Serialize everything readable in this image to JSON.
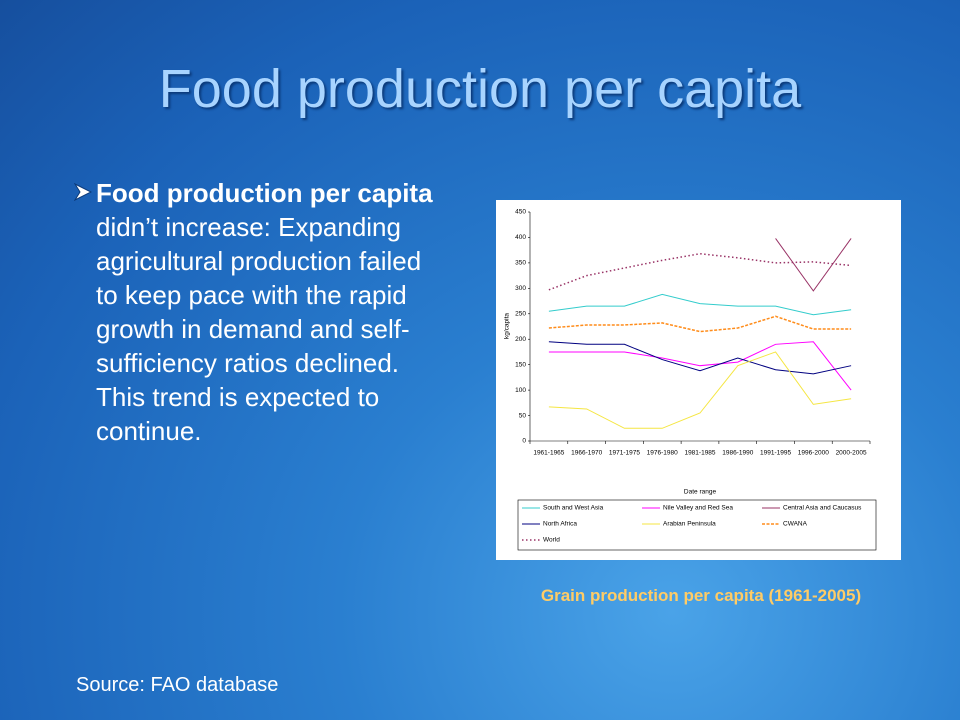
{
  "slide": {
    "title": "Food production per capita",
    "bullet": {
      "bold": "Food production per capita",
      "text": "didn’t increase: Expanding agricultural production failed to keep pace with the rapid growth in demand and self-sufficiency ratios declined. This trend is expected to continue."
    },
    "caption": "Grain production per capita (1961-2005)",
    "source": "Source: FAO database"
  },
  "chart_data": {
    "type": "line",
    "xlabel": "Date range",
    "ylabel": "kg/capita",
    "categories": [
      "1961-1965",
      "1966-1970",
      "1971-1975",
      "1976-1980",
      "1981-1985",
      "1986-1990",
      "1991-1995",
      "1996-2000",
      "2000-2005"
    ],
    "ylim": [
      0,
      450
    ],
    "yticks": [
      0,
      50,
      100,
      150,
      200,
      250,
      300,
      350,
      400,
      450
    ],
    "series": [
      {
        "name": "South and West Asia",
        "color": "#33cccc",
        "dash": "solid",
        "values": [
          255,
          265,
          265,
          288,
          270,
          265,
          265,
          248,
          258
        ]
      },
      {
        "name": "Nile Valley and Red Sea",
        "color": "#ff00ff",
        "dash": "solid",
        "values": [
          175,
          175,
          175,
          163,
          148,
          155,
          190,
          195,
          100
        ]
      },
      {
        "name": "Central Asia and Caucasus",
        "color": "#993366",
        "dash": "solid",
        "values": [
          null,
          null,
          null,
          null,
          null,
          null,
          398,
          295,
          398
        ]
      },
      {
        "name": "North Africa",
        "color": "#000080",
        "dash": "solid",
        "values": [
          195,
          190,
          190,
          160,
          138,
          163,
          140,
          132,
          148
        ]
      },
      {
        "name": "Arabian Peninsula",
        "color": "#f5e642",
        "dash": "solid",
        "values": [
          67,
          63,
          25,
          25,
          55,
          148,
          175,
          72,
          83
        ]
      },
      {
        "name": "CWANA",
        "color": "#ff8c1a",
        "dash": "dashed",
        "values": [
          222,
          228,
          228,
          232,
          215,
          222,
          245,
          220,
          220
        ]
      },
      {
        "name": "World",
        "color": "#993366",
        "dash": "dotted",
        "values": [
          297,
          325,
          340,
          355,
          368,
          360,
          350,
          352,
          345
        ]
      }
    ]
  }
}
